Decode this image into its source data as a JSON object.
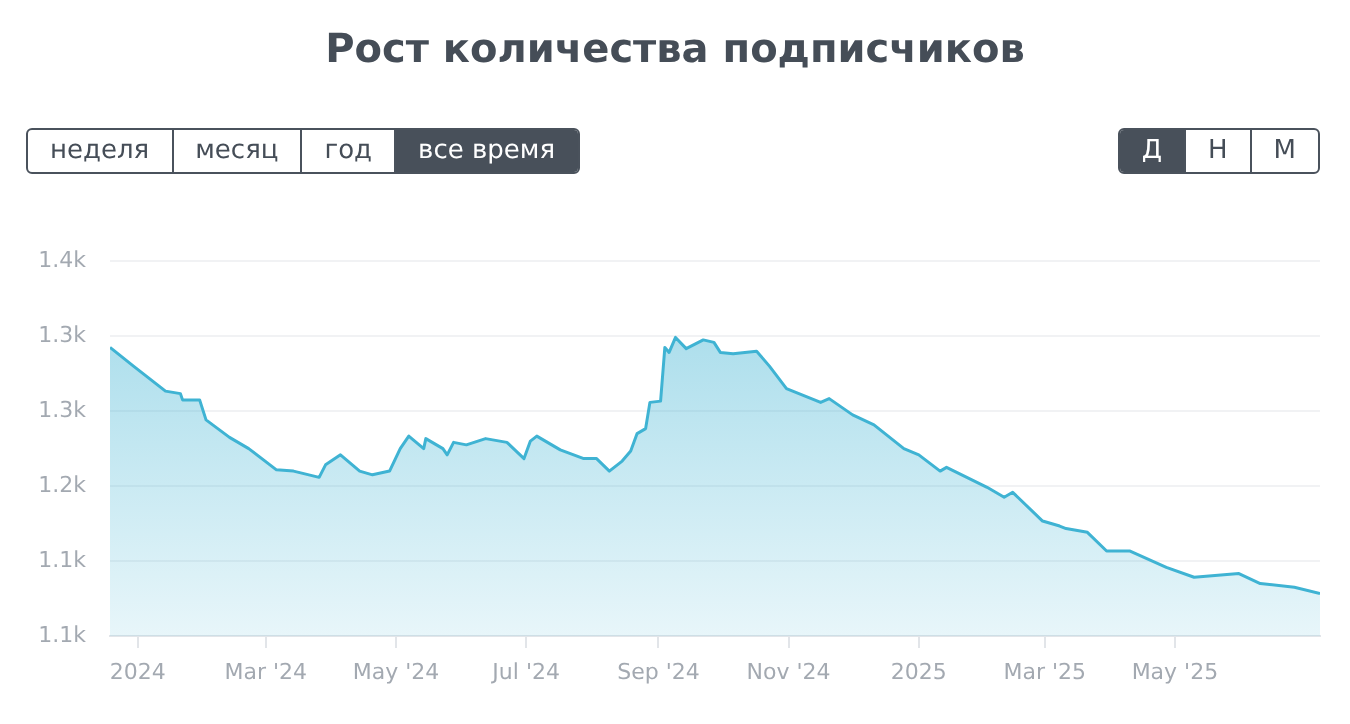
{
  "chart_data": {
    "type": "area",
    "title": "Рост количества подписчиков",
    "annotations": [
      "неделя",
      "месяц",
      "год",
      "все время",
      "Д",
      "Н",
      "М"
    ],
    "x": [
      "2023-12-19",
      "2023-12-30",
      "2024-01-14",
      "2024-01-21",
      "2024-01-22",
      "2024-01-30",
      "2024-02-02",
      "2024-02-13",
      "2024-02-22",
      "2024-03-06",
      "2024-03-14",
      "2024-03-26",
      "2024-03-29",
      "2024-04-05",
      "2024-04-14",
      "2024-04-20",
      "2024-04-28",
      "2024-05-03",
      "2024-05-07",
      "2024-05-14",
      "2024-05-15",
      "2024-05-23",
      "2024-05-25",
      "2024-05-28",
      "2024-06-03",
      "2024-06-12",
      "2024-06-22",
      "2024-06-30",
      "2024-07-03",
      "2024-07-06",
      "2024-07-17",
      "2024-07-28",
      "2024-08-03",
      "2024-08-09",
      "2024-08-15",
      "2024-08-19",
      "2024-08-22",
      "2024-08-26",
      "2024-08-28",
      "2024-09-02",
      "2024-09-04",
      "2024-09-06",
      "2024-09-09",
      "2024-09-14",
      "2024-09-22",
      "2024-09-27",
      "2024-09-30",
      "2024-10-06",
      "2024-10-17",
      "2024-10-23",
      "2024-10-31",
      "2024-11-16",
      "2024-11-20",
      "2024-12-01",
      "2024-12-11",
      "2024-12-25",
      "2025-01-01",
      "2025-01-11",
      "2025-01-14",
      "2025-02-02",
      "2025-02-10",
      "2025-02-14",
      "2025-02-28",
      "2025-03-08",
      "2025-03-11",
      "2025-03-21",
      "2025-03-30",
      "2025-04-10",
      "2025-04-27",
      "2025-05-10",
      "2025-05-31",
      "2025-06-10",
      "2025-06-26",
      "2025-07-08"
    ],
    "series": [
      {
        "color": "#3fb3d3",
        "values": [
          1311,
          1296,
          1276,
          1274,
          1269,
          1269,
          1253,
          1239,
          1230,
          1213,
          1212,
          1207,
          1217,
          1225,
          1212,
          1209,
          1212,
          1230,
          1240,
          1230,
          1238,
          1230,
          1225,
          1235,
          1233,
          1238,
          1235,
          1222,
          1236,
          1240,
          1229,
          1222,
          1222,
          1212,
          1220,
          1228,
          1242,
          1246,
          1267,
          1268,
          1311,
          1307,
          1319,
          1310,
          1317,
          1315,
          1307,
          1306,
          1308,
          1296,
          1278,
          1267,
          1270,
          1257,
          1249,
          1230,
          1225,
          1212,
          1215,
          1199,
          1191,
          1195,
          1172,
          1168,
          1166,
          1163,
          1148,
          1148,
          1135,
          1127,
          1130,
          1122,
          1119,
          1114
        ]
      }
    ],
    "xlim": [
      "2023-12-19",
      "2025-07-08"
    ],
    "xticks": [
      {
        "value": "2024-01-01",
        "label": "2024"
      },
      {
        "value": "2024-03-01",
        "label": "Mar '24"
      },
      {
        "value": "2024-05-01",
        "label": "May '24"
      },
      {
        "value": "2024-07-01",
        "label": "Jul '24"
      },
      {
        "value": "2024-09-01",
        "label": "Sep '24"
      },
      {
        "value": "2024-11-01",
        "label": "Nov '24"
      },
      {
        "value": "2025-01-01",
        "label": "2025"
      },
      {
        "value": "2025-03-01",
        "label": "Mar '25"
      },
      {
        "value": "2025-05-01",
        "label": "May '25"
      }
    ],
    "ylim": [
      1080,
      1380
    ],
    "yticks": [
      {
        "value": 1080,
        "label": "1.1k"
      },
      {
        "value": 1140,
        "label": "1.1k"
      },
      {
        "value": 1200,
        "label": "1.2k"
      },
      {
        "value": 1260,
        "label": "1.3k"
      },
      {
        "value": 1320,
        "label": "1.3k"
      },
      {
        "value": 1380,
        "label": "1.4k"
      }
    ],
    "grid": "y",
    "legend": false,
    "marker": "none",
    "line_style": "solid"
  }
}
